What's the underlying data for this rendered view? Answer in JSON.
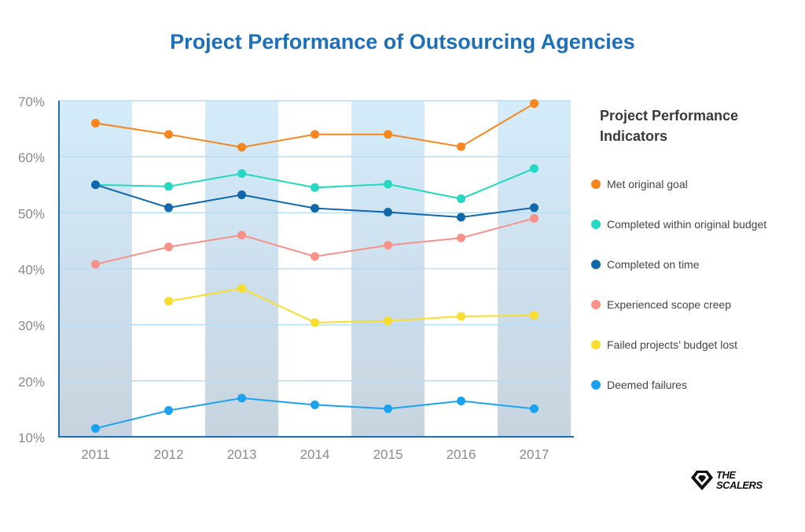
{
  "chart_data": {
    "type": "line",
    "title": "Project Performance of Outsourcing Agencies",
    "categories": [
      "2011",
      "2012",
      "2013",
      "2014",
      "2015",
      "2016",
      "2017"
    ],
    "ylim": [
      10,
      70
    ],
    "yticks": [
      10,
      20,
      30,
      40,
      50,
      60,
      70
    ],
    "ytick_labels": [
      "10%",
      "20%",
      "30%",
      "40%",
      "50%",
      "60%",
      "70%"
    ],
    "xlabel": "",
    "ylabel": "",
    "grid": true,
    "legend_title": "Project Performance\nIndicators",
    "legend_position": "right",
    "series": [
      {
        "name": "Met original goal",
        "color": "#f7861e",
        "values": [
          66,
          64,
          61.7,
          64,
          64,
          61.8,
          69.5
        ]
      },
      {
        "name": "Completed within original budget",
        "color": "#24d8c2",
        "values": [
          55,
          54.7,
          57,
          54.5,
          55.1,
          52.5,
          57.9
        ]
      },
      {
        "name": "Completed on time",
        "color": "#1167ac",
        "values": [
          55,
          50.9,
          53.2,
          50.8,
          50.1,
          49.2,
          50.9
        ]
      },
      {
        "name": "Experienced scope creep",
        "color": "#f7918a",
        "values": [
          40.8,
          43.9,
          46,
          42.2,
          44.2,
          45.5,
          49
        ]
      },
      {
        "name": "Failed projects’ budget lost",
        "color": "#f9dd2e",
        "values": [
          null,
          34.2,
          36.5,
          30.4,
          30.7,
          31.5,
          31.7
        ]
      },
      {
        "name": "Deemed failures",
        "color": "#1ba1f2",
        "values": [
          11.5,
          14.7,
          16.9,
          15.7,
          15,
          16.4,
          15
        ]
      }
    ]
  },
  "logo": {
    "line1": "THE",
    "line2": "SCALERS"
  }
}
